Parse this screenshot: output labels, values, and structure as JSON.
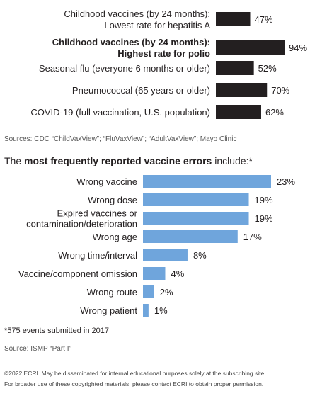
{
  "chart_data": [
    {
      "type": "bar",
      "orientation": "horizontal",
      "categories": [
        [
          "Childhood vaccines (by 24 months):",
          "Lowest rate for hepatitis A"
        ],
        [
          "Childhood vaccines (by 24 months):",
          "Highest rate for polio"
        ],
        [
          "Seasonal flu (everyone 6 months or older)"
        ],
        [
          "Pneumococcal (65 years or older)"
        ],
        [
          "COVID-19 (full vaccination, U.S. population)"
        ]
      ],
      "bold_categories": [
        1
      ],
      "values": [
        47,
        94,
        52,
        70,
        62
      ],
      "value_labels": [
        "47%",
        "94%",
        "52%",
        "70%",
        "62%"
      ],
      "xlim": [
        0,
        100
      ],
      "bar_color": "#231f20",
      "grid": false,
      "source": "Sources: CDC “ChildVaxView”; “FluVaxView”; “AdultVaxView”; Mayo Clinic"
    },
    {
      "type": "bar",
      "orientation": "horizontal",
      "title_parts": [
        "The ",
        "most frequently reported vaccine errors",
        " include:*"
      ],
      "categories": [
        [
          "Wrong vaccine"
        ],
        [
          "Wrong dose"
        ],
        [
          "Expired vaccines or",
          "contamination/deterioration"
        ],
        [
          "Wrong age"
        ],
        [
          "Wrong time/interval"
        ],
        [
          "Vaccine/component omission"
        ],
        [
          "Wrong route"
        ],
        [
          "Wrong patient"
        ]
      ],
      "values": [
        23,
        19,
        19,
        17,
        8,
        4,
        2,
        1
      ],
      "value_labels": [
        "23%",
        "19%",
        "19%",
        "17%",
        "8%",
        "4%",
        "2%",
        "1%"
      ],
      "xlim": [
        0,
        25
      ],
      "bar_color": "#6fa5dc",
      "grid": false,
      "note": "*575 events submitted in 2017",
      "source": "Source: ISMP “Part I”"
    }
  ],
  "footer": [
    "©2022 ECRI. May be disseminated for internal educational purposes solely at the subscribing site.",
    "For broader use of these copyrighted materials, please contact ECRI to obtain proper permission."
  ]
}
